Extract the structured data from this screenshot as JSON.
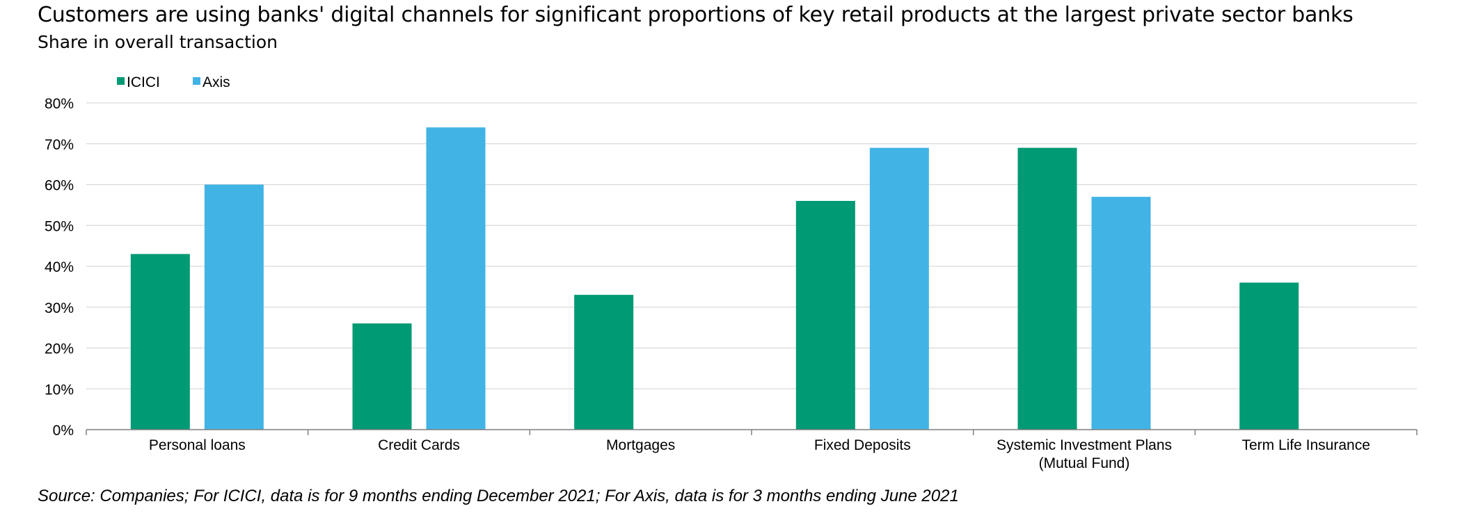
{
  "header": {
    "title": "Customers are using banks' digital channels for significant proportions of key retail products at the largest private sector banks",
    "subtitle": "Share in overall transaction"
  },
  "footer": {
    "source": "Source: Companies; For ICICI, data is for 9 months ending December 2021; For Axis, data is for 3 months ending June 2021"
  },
  "chart_data": {
    "type": "bar",
    "title": "Customers are using banks' digital channels for significant proportions of key retail products at the largest private sector banks",
    "subtitle": "Share in overall transaction",
    "xlabel": "",
    "ylabel": "",
    "ylim": [
      0,
      80
    ],
    "yticks": [
      0,
      10,
      20,
      30,
      40,
      50,
      60,
      70,
      80
    ],
    "ytick_labels": [
      "0%",
      "10%",
      "20%",
      "30%",
      "40%",
      "50%",
      "60%",
      "70%",
      "80%"
    ],
    "grid": true,
    "legend_position": "top-left",
    "categories": [
      [
        "Personal loans"
      ],
      [
        "Credit Cards"
      ],
      [
        "Mortgages"
      ],
      [
        "Fixed Deposits"
      ],
      [
        "Systemic Investment Plans",
        "(Mutual Fund)"
      ],
      [
        "Term Life Insurance"
      ]
    ],
    "series": [
      {
        "name": "ICICI",
        "color": "#009A74",
        "values": [
          43,
          26,
          33,
          56,
          69,
          36
        ]
      },
      {
        "name": "Axis",
        "color": "#41B4E5",
        "values": [
          60,
          74,
          null,
          69,
          57,
          null
        ]
      }
    ]
  }
}
